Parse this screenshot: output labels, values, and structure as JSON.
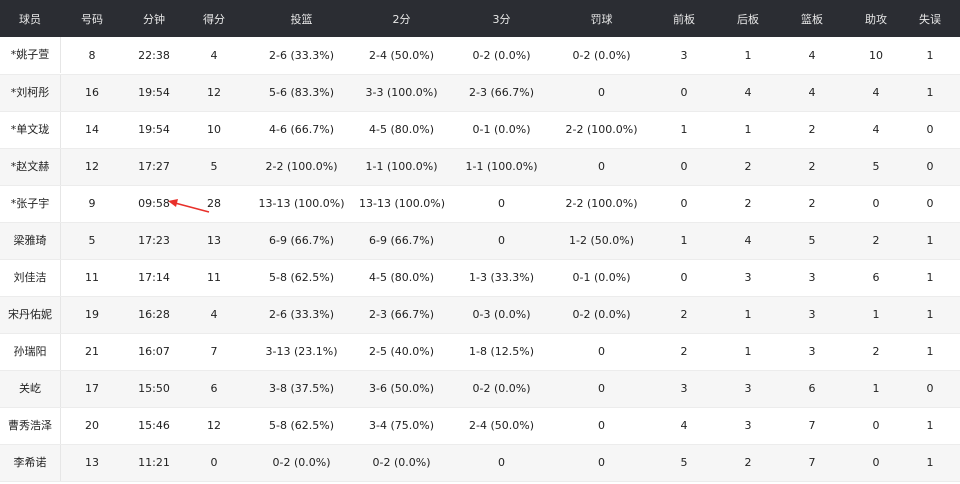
{
  "headers": [
    "球员",
    "号码",
    "分钟",
    "得分",
    "投篮",
    "2分",
    "3分",
    "罚球",
    "前板",
    "后板",
    "篮板",
    "助攻",
    "失误"
  ],
  "rows": [
    [
      "*姚子萱",
      "8",
      "22:38",
      "4",
      "2-6 (33.3%)",
      "2-4 (50.0%)",
      "0-2 (0.0%)",
      "0-2 (0.0%)",
      "3",
      "1",
      "4",
      "10",
      "1"
    ],
    [
      "*刘柯彤",
      "16",
      "19:54",
      "12",
      "5-6 (83.3%)",
      "3-3 (100.0%)",
      "2-3 (66.7%)",
      "0",
      "0",
      "4",
      "4",
      "4",
      "1"
    ],
    [
      "*单文珑",
      "14",
      "19:54",
      "10",
      "4-6 (66.7%)",
      "4-5 (80.0%)",
      "0-1 (0.0%)",
      "2-2 (100.0%)",
      "1",
      "1",
      "2",
      "4",
      "0"
    ],
    [
      "*赵文赫",
      "12",
      "17:27",
      "5",
      "2-2 (100.0%)",
      "1-1 (100.0%)",
      "1-1 (100.0%)",
      "0",
      "0",
      "2",
      "2",
      "5",
      "0"
    ],
    [
      "*张子宇",
      "9",
      "09:58",
      "28",
      "13-13 (100.0%)",
      "13-13 (100.0%)",
      "0",
      "2-2 (100.0%)",
      "0",
      "2",
      "2",
      "0",
      "0"
    ],
    [
      "梁雅琦",
      "5",
      "17:23",
      "13",
      "6-9 (66.7%)",
      "6-9 (66.7%)",
      "0",
      "1-2 (50.0%)",
      "1",
      "4",
      "5",
      "2",
      "1"
    ],
    [
      "刘佳洁",
      "11",
      "17:14",
      "11",
      "5-8 (62.5%)",
      "4-5 (80.0%)",
      "1-3 (33.3%)",
      "0-1 (0.0%)",
      "0",
      "3",
      "3",
      "6",
      "1"
    ],
    [
      "宋丹佑妮",
      "19",
      "16:28",
      "4",
      "2-6 (33.3%)",
      "2-3 (66.7%)",
      "0-3 (0.0%)",
      "0-2 (0.0%)",
      "2",
      "1",
      "3",
      "1",
      "1"
    ],
    [
      "孙瑞阳",
      "21",
      "16:07",
      "7",
      "3-13 (23.1%)",
      "2-5 (40.0%)",
      "1-8 (12.5%)",
      "0",
      "2",
      "1",
      "3",
      "2",
      "1"
    ],
    [
      "关屹",
      "17",
      "15:50",
      "6",
      "3-8 (37.5%)",
      "3-6 (50.0%)",
      "0-2 (0.0%)",
      "0",
      "3",
      "3",
      "6",
      "1",
      "0"
    ],
    [
      "曹秀浩泽",
      "20",
      "15:46",
      "12",
      "5-8 (62.5%)",
      "3-4 (75.0%)",
      "2-4 (50.0%)",
      "0",
      "4",
      "3",
      "7",
      "0",
      "1"
    ],
    [
      "李希诺",
      "13",
      "11:21",
      "0",
      "0-2 (0.0%)",
      "0-2 (0.0%)",
      "0",
      "0",
      "5",
      "2",
      "7",
      "0",
      "1"
    ]
  ],
  "annotation": {
    "type": "arrow",
    "color": "#e8302a",
    "target": "09:58"
  }
}
